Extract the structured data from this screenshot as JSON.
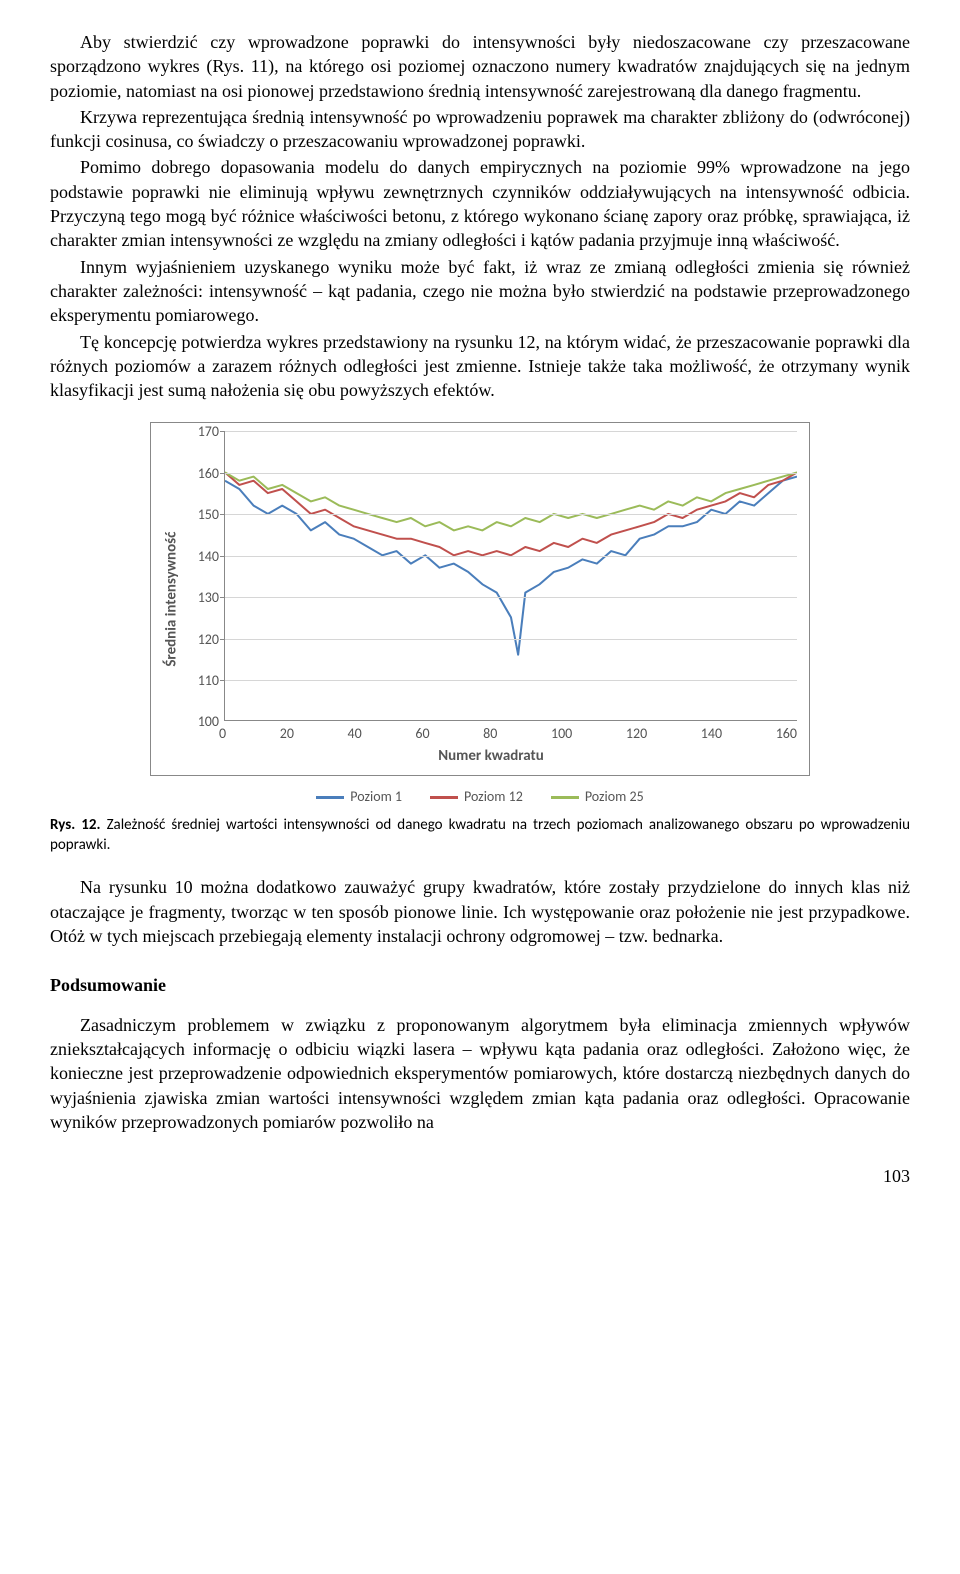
{
  "paragraphs": {
    "p1": "Aby stwierdzić czy wprowadzone poprawki do intensywności były niedoszacowane czy przeszacowane sporządzono wykres (Rys. 11), na którego osi poziomej oznaczono numery kwadratów znajdujących się na jednym poziomie, natomiast na osi pionowej przedstawiono średnią intensywność zarejestrowaną dla danego fragmentu.",
    "p2": "Krzywa reprezentująca średnią intensywność po wprowadzeniu poprawek ma charakter zbliżony do (odwróconej) funkcji cosinusa, co świadczy o przeszacowaniu wprowadzonej poprawki.",
    "p3": "Pomimo dobrego dopasowania modelu do danych empirycznych na poziomie 99% wprowadzone na jego podstawie poprawki nie eliminują wpływu zewnętrznych czynników oddziaływujących na intensywność odbicia. Przyczyną tego mogą być różnice właściwości betonu, z którego wykonano ścianę zapory oraz próbkę, sprawiająca, iż charakter zmian intensywności ze względu na zmiany odległości i kątów padania przyjmuje inną właściwość.",
    "p4": "Innym wyjaśnieniem uzyskanego wyniku może być fakt, iż wraz ze zmianą odległości zmienia się również charakter zależności: intensywność – kąt padania, czego nie można było stwierdzić na podstawie przeprowadzonego eksperymentu pomiarowego.",
    "p5": "Tę koncepcję potwierdza wykres przedstawiony na rysunku 12, na którym widać, że przeszacowanie poprawki dla różnych poziomów a zarazem różnych odległości jest zmienne. Istnieje także taka możliwość, że otrzymany wynik klasyfikacji jest sumą nałożenia się obu powyższych efektów.",
    "p6": "Na rysunku 10 można dodatkowo zauważyć grupy kwadratów, które zostały przydzielone do innych klas niż otaczające je fragmenty, tworząc w ten sposób pionowe linie. Ich występowanie oraz położenie nie jest przypadkowe. Otóż w tych miejscach przebiegają elementy instalacji ochrony odgromowej – tzw. bednarka.",
    "p7": "Zasadniczym problemem w związku z proponowanym algorytmem była eliminacja zmiennych wpływów zniekształcających informację o odbiciu wiązki lasera – wpływu kąta padania oraz odległości. Założono więc, że konieczne jest przeprowadzenie odpowiednich eksperymentów pomiarowych, które dostarczą niezbędnych danych do wyjaśnienia zjawiska zmian wartości intensywności względem zmian kąta padania oraz odległości. Opracowanie wyników przeprowadzonych pomiarów pozwoliło na"
  },
  "caption": {
    "label": "Rys. 12.",
    "text": "Zależność średniej wartości intensywności od danego kwadratu na trzech poziomach analizowanego obszaru po wprowadzeniu poprawki."
  },
  "section_heading": "Podsumowanie",
  "page_number": "103",
  "chart": {
    "type": "line",
    "ylabel": "Średnia intensywność",
    "xlabel": "Numer kwadratu",
    "ylim": [
      100,
      170
    ],
    "ytick_step": 10,
    "yticks": [
      "170",
      "160",
      "150",
      "140",
      "130",
      "120",
      "110",
      "100"
    ],
    "xlim": [
      0,
      160
    ],
    "xtick_step": 20,
    "xticks": [
      "0",
      "20",
      "40",
      "60",
      "80",
      "100",
      "120",
      "140",
      "160"
    ],
    "grid_color": "#d6d6d6",
    "background_color": "#ffffff",
    "axis_color": "#888888",
    "label_color": "#555555",
    "label_fontsize": 15,
    "tick_fontsize": 14,
    "line_width": 2,
    "series": [
      {
        "name": "Poziom 1",
        "color": "#4a7ebb",
        "x": [
          0,
          4,
          8,
          12,
          16,
          20,
          24,
          28,
          32,
          36,
          40,
          44,
          48,
          52,
          56,
          60,
          64,
          68,
          72,
          76,
          80,
          82,
          84,
          88,
          92,
          96,
          100,
          104,
          108,
          112,
          116,
          120,
          124,
          128,
          132,
          136,
          140,
          144,
          148,
          152,
          156,
          160
        ],
        "y": [
          158,
          156,
          152,
          150,
          152,
          150,
          146,
          148,
          145,
          144,
          142,
          140,
          141,
          138,
          140,
          137,
          138,
          136,
          133,
          131,
          125,
          116,
          131,
          133,
          136,
          137,
          139,
          138,
          141,
          140,
          144,
          145,
          147,
          147,
          148,
          151,
          150,
          153,
          152,
          155,
          158,
          159
        ]
      },
      {
        "name": "Poziom 12",
        "color": "#c0504d",
        "x": [
          0,
          4,
          8,
          12,
          16,
          20,
          24,
          28,
          32,
          36,
          40,
          44,
          48,
          52,
          56,
          60,
          64,
          68,
          72,
          76,
          80,
          84,
          88,
          92,
          96,
          100,
          104,
          108,
          112,
          116,
          120,
          124,
          128,
          132,
          136,
          140,
          144,
          148,
          152,
          156,
          160
        ],
        "y": [
          160,
          157,
          158,
          155,
          156,
          153,
          150,
          151,
          149,
          147,
          146,
          145,
          144,
          144,
          143,
          142,
          140,
          141,
          140,
          141,
          140,
          142,
          141,
          143,
          142,
          144,
          143,
          145,
          146,
          147,
          148,
          150,
          149,
          151,
          152,
          153,
          155,
          154,
          157,
          158,
          160
        ]
      },
      {
        "name": "Poziom 25",
        "color": "#9bbb59",
        "x": [
          0,
          4,
          8,
          12,
          16,
          20,
          24,
          28,
          32,
          36,
          40,
          44,
          48,
          52,
          56,
          60,
          64,
          68,
          72,
          76,
          80,
          84,
          88,
          92,
          96,
          100,
          104,
          108,
          112,
          116,
          120,
          124,
          128,
          132,
          136,
          140,
          144,
          148,
          152,
          156,
          160
        ],
        "y": [
          160,
          158,
          159,
          156,
          157,
          155,
          153,
          154,
          152,
          151,
          150,
          149,
          148,
          149,
          147,
          148,
          146,
          147,
          146,
          148,
          147,
          149,
          148,
          150,
          149,
          150,
          149,
          150,
          151,
          152,
          151,
          153,
          152,
          154,
          153,
          155,
          156,
          157,
          158,
          159,
          160
        ]
      }
    ],
    "legend": [
      {
        "label": "Poziom 1",
        "color": "#4a7ebb"
      },
      {
        "label": "Poziom 12",
        "color": "#c0504d"
      },
      {
        "label": "Poziom 25",
        "color": "#9bbb59"
      }
    ]
  }
}
